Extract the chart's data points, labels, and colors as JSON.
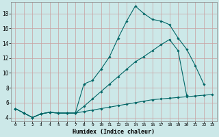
{
  "xlabel": "Humidex (Indice chaleur)",
  "bg_color": "#cce8e8",
  "grid_color": "#c8a0a0",
  "line_color": "#006666",
  "xlim": [
    -0.5,
    23.5
  ],
  "ylim": [
    3.5,
    19.5
  ],
  "xticks": [
    0,
    1,
    2,
    3,
    4,
    5,
    6,
    7,
    8,
    9,
    10,
    11,
    12,
    13,
    14,
    15,
    16,
    17,
    18,
    19,
    20,
    21,
    22,
    23
  ],
  "yticks": [
    4,
    6,
    8,
    10,
    12,
    14,
    16,
    18
  ],
  "line1_x": [
    0,
    1,
    2,
    3,
    4,
    5,
    6,
    7,
    8,
    9,
    10,
    11,
    12,
    13,
    14,
    15,
    16,
    17,
    18,
    19,
    20,
    21,
    22
  ],
  "line1_y": [
    5.2,
    4.6,
    4.0,
    4.5,
    4.7,
    4.6,
    4.6,
    4.6,
    8.5,
    9.0,
    10.5,
    12.2,
    14.7,
    17.0,
    19.0,
    18.0,
    17.2,
    17.0,
    16.5,
    14.7,
    13.2,
    11.0,
    8.5
  ],
  "line2_x": [
    0,
    1,
    2,
    3,
    4,
    5,
    6,
    7,
    8,
    9,
    10,
    11,
    12,
    13,
    14,
    15,
    16,
    17,
    18,
    19,
    20
  ],
  "line2_y": [
    5.2,
    4.6,
    4.0,
    4.5,
    4.7,
    4.6,
    4.6,
    4.6,
    5.5,
    6.5,
    7.5,
    8.5,
    9.5,
    10.5,
    11.5,
    12.2,
    13.0,
    13.8,
    14.5,
    13.0,
    7.0
  ],
  "line3_x": [
    0,
    1,
    2,
    3,
    4,
    5,
    6,
    7,
    8,
    9,
    10,
    11,
    12,
    13,
    14,
    15,
    16,
    17,
    18,
    19,
    20,
    21,
    22,
    23
  ],
  "line3_y": [
    5.2,
    4.6,
    4.0,
    4.5,
    4.7,
    4.6,
    4.6,
    4.6,
    4.8,
    5.0,
    5.2,
    5.4,
    5.6,
    5.8,
    6.0,
    6.2,
    6.4,
    6.5,
    6.6,
    6.7,
    6.8,
    6.9,
    7.0,
    7.1
  ]
}
